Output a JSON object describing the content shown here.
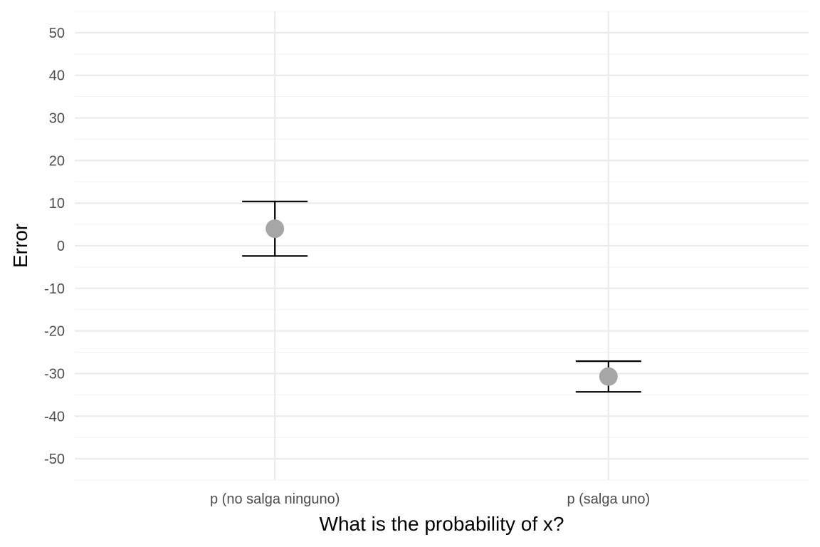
{
  "chart_data": {
    "type": "scatter",
    "title": "",
    "xlabel": "What is the probability of x?",
    "ylabel": "Error",
    "categories": [
      "p (no salga ninguno)",
      "p (salga uno)"
    ],
    "points": [
      {
        "category": "p (no salga ninguno)",
        "y": 4.0,
        "ymin": -2.4,
        "ymax": 10.4
      },
      {
        "category": "p (salga uno)",
        "y": -30.7,
        "ymin": -34.3,
        "ymax": -27.1
      }
    ],
    "ylim": [
      -55,
      55
    ],
    "yticks": [
      -50,
      -40,
      -30,
      -20,
      -10,
      0,
      10,
      20,
      30,
      40,
      50
    ],
    "ytick_labels": [
      "-50",
      "-40",
      "-30",
      "-20",
      "-10",
      "0",
      "10",
      "20",
      "30",
      "40",
      "50"
    ],
    "grid": true,
    "colors": {
      "point": "#a6a6a6",
      "errorbar": "#000000",
      "grid_major": "#ebebeb",
      "grid_minor": "#f3f3f3",
      "tick_label": "#4d4d4d"
    }
  }
}
